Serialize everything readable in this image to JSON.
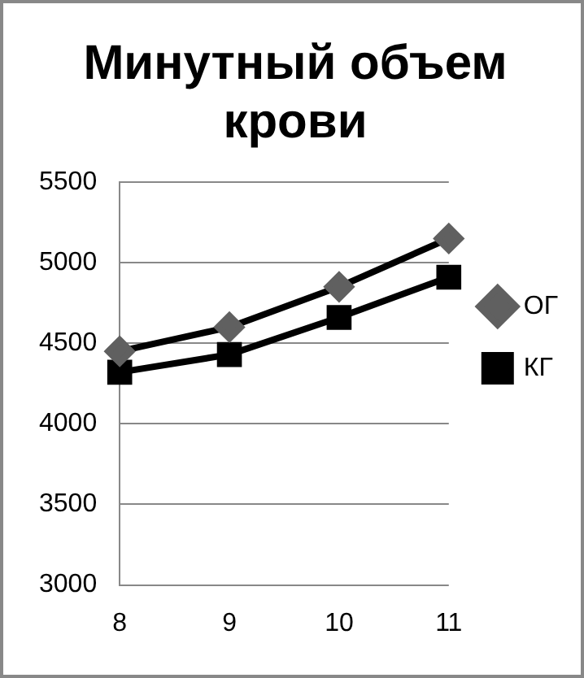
{
  "chart_data": {
    "type": "line",
    "title": "Минутный объем крови",
    "categories": [
      "8",
      "9",
      "10",
      "11"
    ],
    "series": [
      {
        "name": "ОГ",
        "color": "#606060",
        "marker": "diamond",
        "values": [
          4450,
          4600,
          4850,
          5150
        ]
      },
      {
        "name": "КГ",
        "color": "#000000",
        "marker": "square",
        "values": [
          4320,
          4430,
          4660,
          4910
        ]
      }
    ],
    "ylim": [
      3000,
      5500
    ],
    "yticks": [
      3000,
      3500,
      4000,
      4500,
      5000,
      5500
    ],
    "grid": "y",
    "legend": "right"
  }
}
